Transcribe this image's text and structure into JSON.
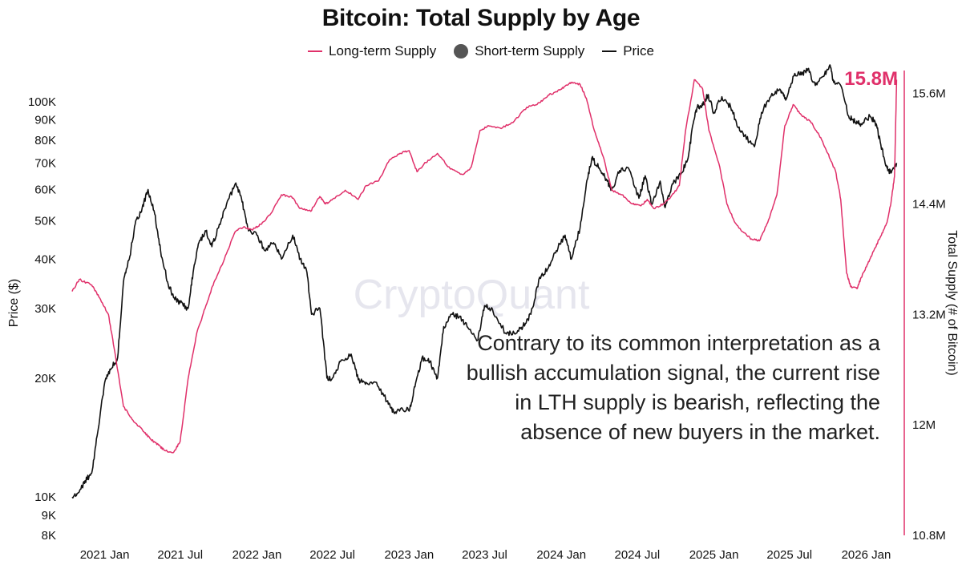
{
  "title": "Bitcoin: Total Supply by Age",
  "legend": {
    "long_term": "Long-term Supply",
    "short_term": "Short-term Supply",
    "price": "Price"
  },
  "colors": {
    "long_term": "#e0306a",
    "short_term": "#555555",
    "price": "#111111"
  },
  "watermark": "CryptoQuant",
  "annotation": "Contrary to its common interpretation as a bullish accumulation signal, the current rise in LTH supply is bearish, reflecting the absence of new buyers in the market.",
  "callout": "15.8M",
  "chart_data": {
    "type": "line",
    "title": "Bitcoin: Total Supply by Age",
    "ylabel_left": "Price ($)",
    "ylabel_right": "Total Supply (# of Bitcoin)",
    "left_axis_scale": "log",
    "x_ticks": [
      "2021 Jan",
      "2021 Jul",
      "2022 Jan",
      "2022 Jul",
      "2023 Jan",
      "2023 Jul",
      "2024 Jan",
      "2024 Jul",
      "2025 Jan",
      "2025 Jul",
      "2026 Jan"
    ],
    "left_ticks": [
      {
        "value": 8000,
        "label": "8K"
      },
      {
        "value": 9000,
        "label": "9K"
      },
      {
        "value": 10000,
        "label": "10K"
      },
      {
        "value": 20000,
        "label": "20K"
      },
      {
        "value": 30000,
        "label": "30K"
      },
      {
        "value": 40000,
        "label": "40K"
      },
      {
        "value": 50000,
        "label": "50K"
      },
      {
        "value": 60000,
        "label": "60K"
      },
      {
        "value": 70000,
        "label": "70K"
      },
      {
        "value": 80000,
        "label": "80K"
      },
      {
        "value": 90000,
        "label": "90K"
      },
      {
        "value": 100000,
        "label": "100K"
      }
    ],
    "right_ticks": [
      {
        "value": 10.8,
        "label": "10.8M"
      },
      {
        "value": 12.0,
        "label": "12M"
      },
      {
        "value": 13.2,
        "label": "13.2M"
      },
      {
        "value": 14.4,
        "label": "14.4M"
      },
      {
        "value": 15.6,
        "label": "15.6M"
      }
    ],
    "left_range": [
      8000,
      120000
    ],
    "right_range": [
      10.8,
      15.85
    ],
    "grid": false,
    "legend_position": "top-center",
    "series": [
      {
        "name": "Price",
        "axis": "left",
        "x": [
          "2020-10-15",
          "2020-11-01",
          "2020-11-15",
          "2020-12-01",
          "2020-12-15",
          "2021-01-01",
          "2021-01-15",
          "2021-02-01",
          "2021-02-15",
          "2021-03-01",
          "2021-03-15",
          "2021-04-01",
          "2021-04-15",
          "2021-05-01",
          "2021-05-15",
          "2021-06-01",
          "2021-06-15",
          "2021-07-01",
          "2021-07-20",
          "2021-08-01",
          "2021-08-15",
          "2021-09-01",
          "2021-09-15",
          "2021-10-01",
          "2021-10-20",
          "2021-11-10",
          "2021-11-25",
          "2021-12-10",
          "2022-01-01",
          "2022-01-20",
          "2022-02-10",
          "2022-03-01",
          "2022-03-28",
          "2022-04-15",
          "2022-05-01",
          "2022-05-12",
          "2022-06-01",
          "2022-06-18",
          "2022-07-01",
          "2022-07-20",
          "2022-08-15",
          "2022-09-01",
          "2022-09-20",
          "2022-10-15",
          "2022-11-09",
          "2022-11-25",
          "2022-12-15",
          "2023-01-01",
          "2023-01-15",
          "2023-02-01",
          "2023-02-20",
          "2023-03-10",
          "2023-03-25",
          "2023-04-15",
          "2023-05-01",
          "2023-05-20",
          "2023-06-15",
          "2023-07-01",
          "2023-07-20",
          "2023-08-20",
          "2023-09-10",
          "2023-10-01",
          "2023-10-20",
          "2023-11-10",
          "2023-12-01",
          "2023-12-20",
          "2024-01-10",
          "2024-01-25",
          "2024-02-15",
          "2024-03-01",
          "2024-03-14",
          "2024-04-01",
          "2024-04-20",
          "2024-05-01",
          "2024-05-20",
          "2024-06-10",
          "2024-07-05",
          "2024-07-20",
          "2024-08-05",
          "2024-08-25",
          "2024-09-06",
          "2024-09-25",
          "2024-10-15",
          "2024-10-31",
          "2024-11-12",
          "2024-11-22",
          "2024-12-05",
          "2024-12-17",
          "2025-01-01",
          "2025-01-20",
          "2025-02-10",
          "2025-03-01",
          "2025-03-15",
          "2025-04-08",
          "2025-04-25",
          "2025-05-20",
          "2025-06-10",
          "2025-06-22",
          "2025-07-14",
          "2025-07-30",
          "2025-08-14",
          "2025-09-01",
          "2025-09-20",
          "2025-10-06",
          "2025-10-15",
          "2025-11-01",
          "2025-11-20",
          "2025-12-05",
          "2025-12-20",
          "2026-01-10",
          "2026-01-25",
          "2026-02-05",
          "2026-02-20",
          "2026-03-01",
          "2026-03-15"
        ],
        "y": [
          10000,
          10300,
          11000,
          11500,
          14500,
          19500,
          21000,
          22500,
          35000,
          40000,
          49000,
          54000,
          60000,
          52000,
          42000,
          35000,
          32000,
          31000,
          30000,
          37000,
          44000,
          47000,
          43000,
          48000,
          55000,
          62000,
          57000,
          48000,
          46000,
          42000,
          44000,
          40000,
          46000,
          40000,
          37000,
          29000,
          30000,
          20000,
          20000,
          22000,
          23000,
          19800,
          19500,
          19500,
          17500,
          16400,
          16800,
          16500,
          19000,
          22500,
          22000,
          20000,
          27000,
          29000,
          28500,
          27000,
          25000,
          30500,
          29800,
          26000,
          26000,
          27000,
          29000,
          36000,
          38000,
          42000,
          46000,
          40000,
          48000,
          62000,
          72000,
          68000,
          63000,
          60000,
          67000,
          68000,
          57000,
          65000,
          55000,
          63000,
          54000,
          62000,
          66000,
          72000,
          88000,
          97000,
          98000,
          104000,
          94000,
          103000,
          97000,
          86000,
          82000,
          77000,
          94000,
          105000,
          107000,
          101000,
          118000,
          117000,
          121000,
          110000,
          116000,
          124000,
          112000,
          110000,
          92000,
          89000,
          88000,
          92000,
          88000,
          78000,
          68000,
          66000,
          70000
        ]
      },
      {
        "name": "Long-term Supply",
        "axis": "right",
        "x": [
          "2020-10-15",
          "2020-11-01",
          "2020-12-01",
          "2020-12-20",
          "2021-01-10",
          "2021-01-25",
          "2021-02-15",
          "2021-03-10",
          "2021-04-01",
          "2021-04-20",
          "2021-05-10",
          "2021-05-25",
          "2021-06-15",
          "2021-07-01",
          "2021-07-20",
          "2021-08-10",
          "2021-09-01",
          "2021-09-20",
          "2021-10-15",
          "2021-11-10",
          "2021-11-30",
          "2021-12-20",
          "2022-01-10",
          "2022-02-01",
          "2022-03-01",
          "2022-03-25",
          "2022-04-15",
          "2022-05-10",
          "2022-06-01",
          "2022-06-15",
          "2022-07-01",
          "2022-08-01",
          "2022-09-01",
          "2022-09-20",
          "2022-10-20",
          "2022-11-15",
          "2022-12-10",
          "2023-01-01",
          "2023-01-20",
          "2023-02-10",
          "2023-03-10",
          "2023-04-10",
          "2023-05-10",
          "2023-05-30",
          "2023-06-20",
          "2023-07-10",
          "2023-08-10",
          "2023-09-10",
          "2023-10-10",
          "2023-11-10",
          "2023-11-30",
          "2023-12-20",
          "2024-01-10",
          "2024-01-25",
          "2024-02-15",
          "2024-03-01",
          "2024-03-20",
          "2024-04-10",
          "2024-05-01",
          "2024-05-25",
          "2024-06-20",
          "2024-07-10",
          "2024-07-25",
          "2024-08-10",
          "2024-09-01",
          "2024-09-20",
          "2024-10-10",
          "2024-10-25",
          "2024-11-15",
          "2024-12-05",
          "2024-12-20",
          "2025-01-15",
          "2025-02-01",
          "2025-02-20",
          "2025-03-10",
          "2025-04-01",
          "2025-04-20",
          "2025-05-10",
          "2025-06-01",
          "2025-06-20",
          "2025-07-10",
          "2025-08-01",
          "2025-08-20",
          "2025-09-10",
          "2025-10-01",
          "2025-10-20",
          "2025-11-01",
          "2025-11-15",
          "2025-11-25",
          "2025-12-10",
          "2025-12-20",
          "2026-01-05",
          "2026-01-20",
          "2026-02-05",
          "2026-02-20",
          "2026-03-01",
          "2026-03-10",
          "2026-03-15"
        ],
        "y": [
          13.45,
          13.58,
          13.52,
          13.38,
          13.2,
          12.8,
          12.2,
          12.05,
          11.95,
          11.85,
          11.78,
          11.72,
          11.7,
          11.82,
          12.5,
          13.0,
          13.3,
          13.55,
          13.8,
          14.1,
          14.15,
          14.12,
          14.18,
          14.28,
          14.5,
          14.48,
          14.35,
          14.32,
          14.48,
          14.4,
          14.45,
          14.55,
          14.45,
          14.6,
          14.65,
          14.88,
          14.95,
          14.98,
          14.75,
          14.85,
          14.95,
          14.78,
          14.72,
          14.8,
          15.2,
          15.25,
          15.22,
          15.3,
          15.45,
          15.5,
          15.58,
          15.62,
          15.68,
          15.72,
          15.7,
          15.55,
          15.2,
          14.92,
          14.55,
          14.5,
          14.4,
          14.38,
          14.45,
          14.35,
          14.4,
          14.48,
          14.6,
          15.2,
          15.75,
          15.65,
          15.2,
          14.8,
          14.4,
          14.2,
          14.1,
          14.02,
          14.0,
          14.2,
          14.5,
          15.25,
          15.48,
          15.35,
          15.3,
          15.15,
          14.95,
          14.75,
          14.45,
          13.65,
          13.5,
          13.48,
          13.6,
          13.75,
          13.9,
          14.05,
          14.2,
          14.4,
          14.7,
          15.75
        ]
      },
      {
        "name": "Short-term Supply",
        "axis": "right",
        "x": [],
        "y": []
      }
    ]
  }
}
